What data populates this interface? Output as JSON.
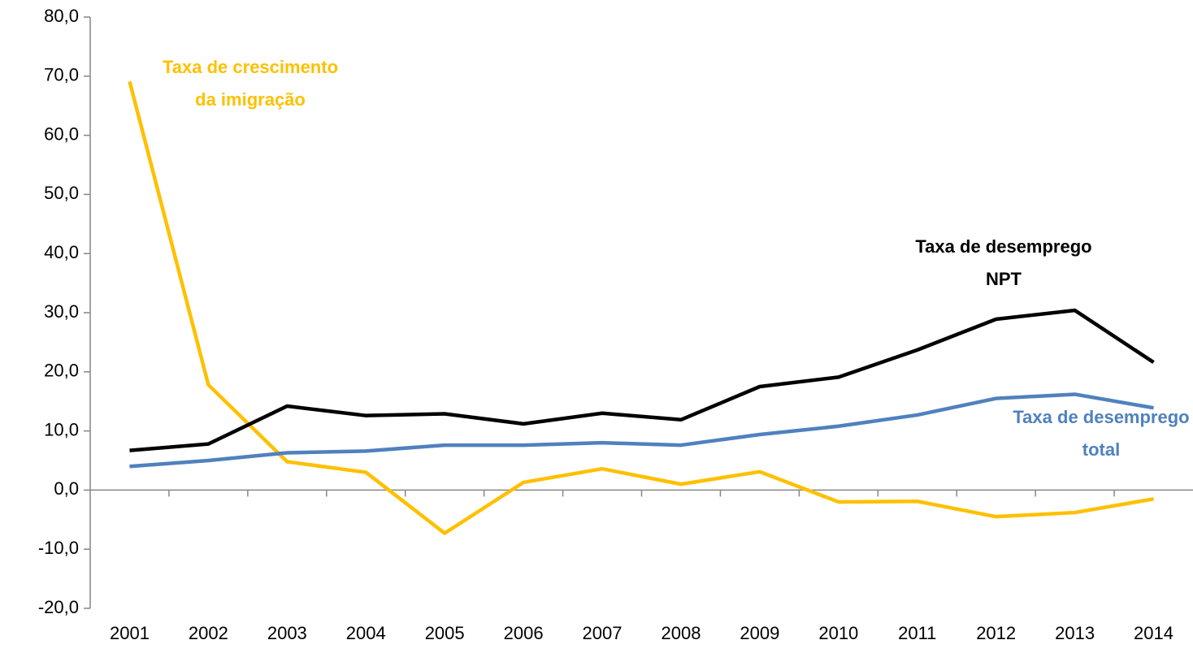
{
  "chart_data": {
    "type": "line",
    "categories": [
      "2001",
      "2002",
      "2003",
      "2004",
      "2005",
      "2006",
      "2007",
      "2008",
      "2009",
      "2010",
      "2011",
      "2012",
      "2013",
      "2014"
    ],
    "series": [
      {
        "name": "Taxa de crescimento da imigração",
        "color": "#ffc000",
        "values": [
          69.1,
          17.8,
          4.8,
          3.0,
          -7.3,
          1.3,
          3.6,
          1.0,
          3.1,
          -2.0,
          -1.9,
          -4.5,
          -3.8,
          -1.5
        ]
      },
      {
        "name": "Taxa de desemprego NPT",
        "color": "#000000",
        "values": [
          6.7,
          7.8,
          14.2,
          12.6,
          12.9,
          11.2,
          13.0,
          11.9,
          17.5,
          19.1,
          23.7,
          28.9,
          30.4,
          21.6
        ]
      },
      {
        "name": "Taxa de desemprego total",
        "color": "#4f81bd",
        "values": [
          4.0,
          5.0,
          6.3,
          6.6,
          7.6,
          7.6,
          8.0,
          7.6,
          9.4,
          10.8,
          12.7,
          15.5,
          16.2,
          13.9
        ]
      }
    ],
    "annotations": [
      {
        "lines": [
          "Taxa de crescimento",
          "da imigração"
        ],
        "color": "#ffc000"
      },
      {
        "lines": [
          "Taxa de desemprego",
          "NPT"
        ],
        "color": "#000000"
      },
      {
        "lines": [
          "Taxa de desemprego",
          "total"
        ],
        "color": "#4f81bd"
      }
    ],
    "ylim": [
      -20,
      80
    ],
    "yticks": [
      {
        "value": -20,
        "label": "-20,0"
      },
      {
        "value": -10,
        "label": "-10,0"
      },
      {
        "value": 0,
        "label": "0,0"
      },
      {
        "value": 10,
        "label": "10,0"
      },
      {
        "value": 20,
        "label": "20,0"
      },
      {
        "value": 30,
        "label": "30,0"
      },
      {
        "value": 40,
        "label": "40,0"
      },
      {
        "value": 50,
        "label": "50,0"
      },
      {
        "value": 60,
        "label": "60,0"
      },
      {
        "value": 70,
        "label": "70,0"
      },
      {
        "value": 80,
        "label": "80,0"
      }
    ],
    "grid": false
  }
}
